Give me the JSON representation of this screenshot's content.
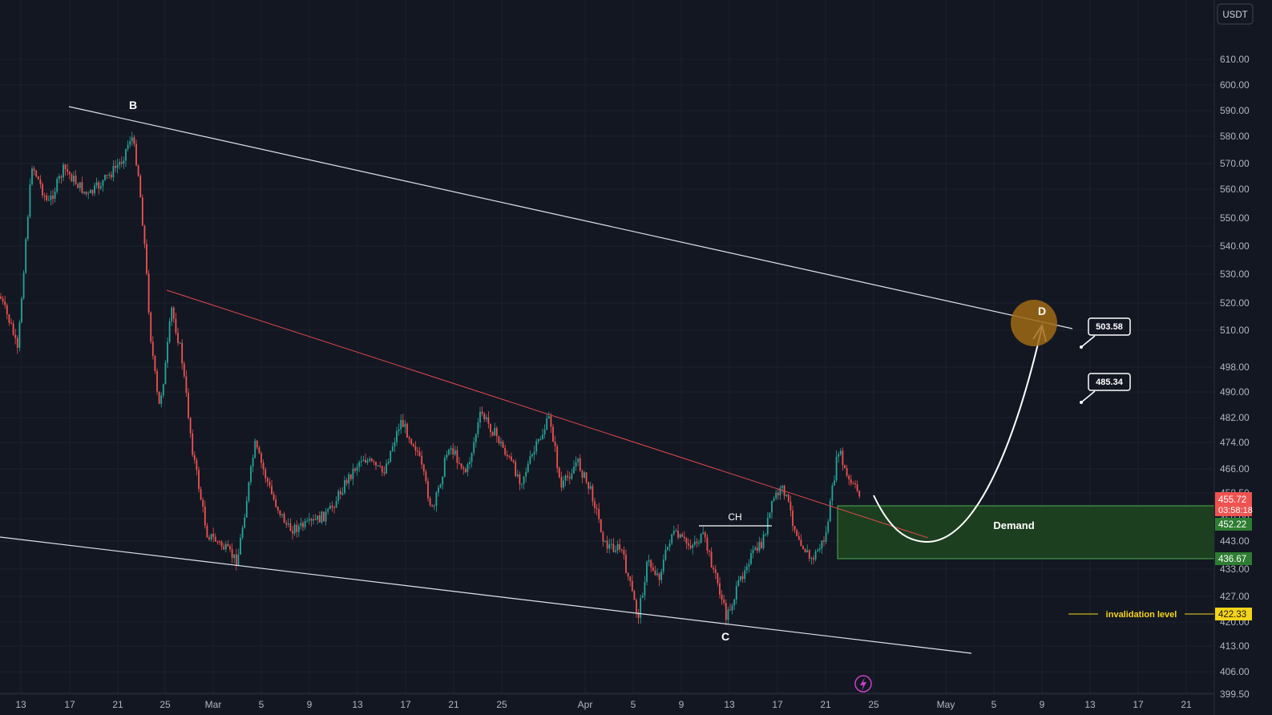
{
  "header": {
    "currency_badge": "USDT"
  },
  "chart_data": {
    "type": "candlestick",
    "title": "",
    "xlabel": "",
    "ylabel": "",
    "y_ticks": [
      "399.50",
      "406.00",
      "413.00",
      "420.00",
      "427.00",
      "433.00",
      "443.00",
      "450.00",
      "458.50",
      "466.00",
      "474.00",
      "482.00",
      "490.00",
      "498.00",
      "510.00",
      "520.00",
      "530.00",
      "540.00",
      "550.00",
      "560.00",
      "570.00",
      "580.00",
      "590.00",
      "600.00",
      "610.00"
    ],
    "x_ticks": [
      "13",
      "17",
      "21",
      "25",
      "Mar",
      "5",
      "9",
      "13",
      "17",
      "21",
      "25",
      "Apr",
      "5",
      "9",
      "13",
      "17",
      "21",
      "25",
      "May",
      "5",
      "9",
      "13",
      "17",
      "21"
    ],
    "price_tags": {
      "last_price": "455.72",
      "countdown": "03:58:18",
      "demand_top": "452.22",
      "demand_bottom": "436.67",
      "invalidation": "422.33"
    },
    "annotations": {
      "wave_b": "B",
      "wave_c": "C",
      "wave_d": "D",
      "choch": "CH",
      "demand": "Demand",
      "invalidation": "invalidation level",
      "target_1": "503.58",
      "target_2": "485.34"
    },
    "colors": {
      "background": "#131722",
      "up": "#26a69a",
      "down": "#ef5350",
      "demand_fill": "#1e4620",
      "demand_border": "#4caf50",
      "invalidation": "#f5d418",
      "wave_d_circle": "#a06a14"
    },
    "series": [
      {
        "name": "",
        "values": []
      }
    ]
  }
}
